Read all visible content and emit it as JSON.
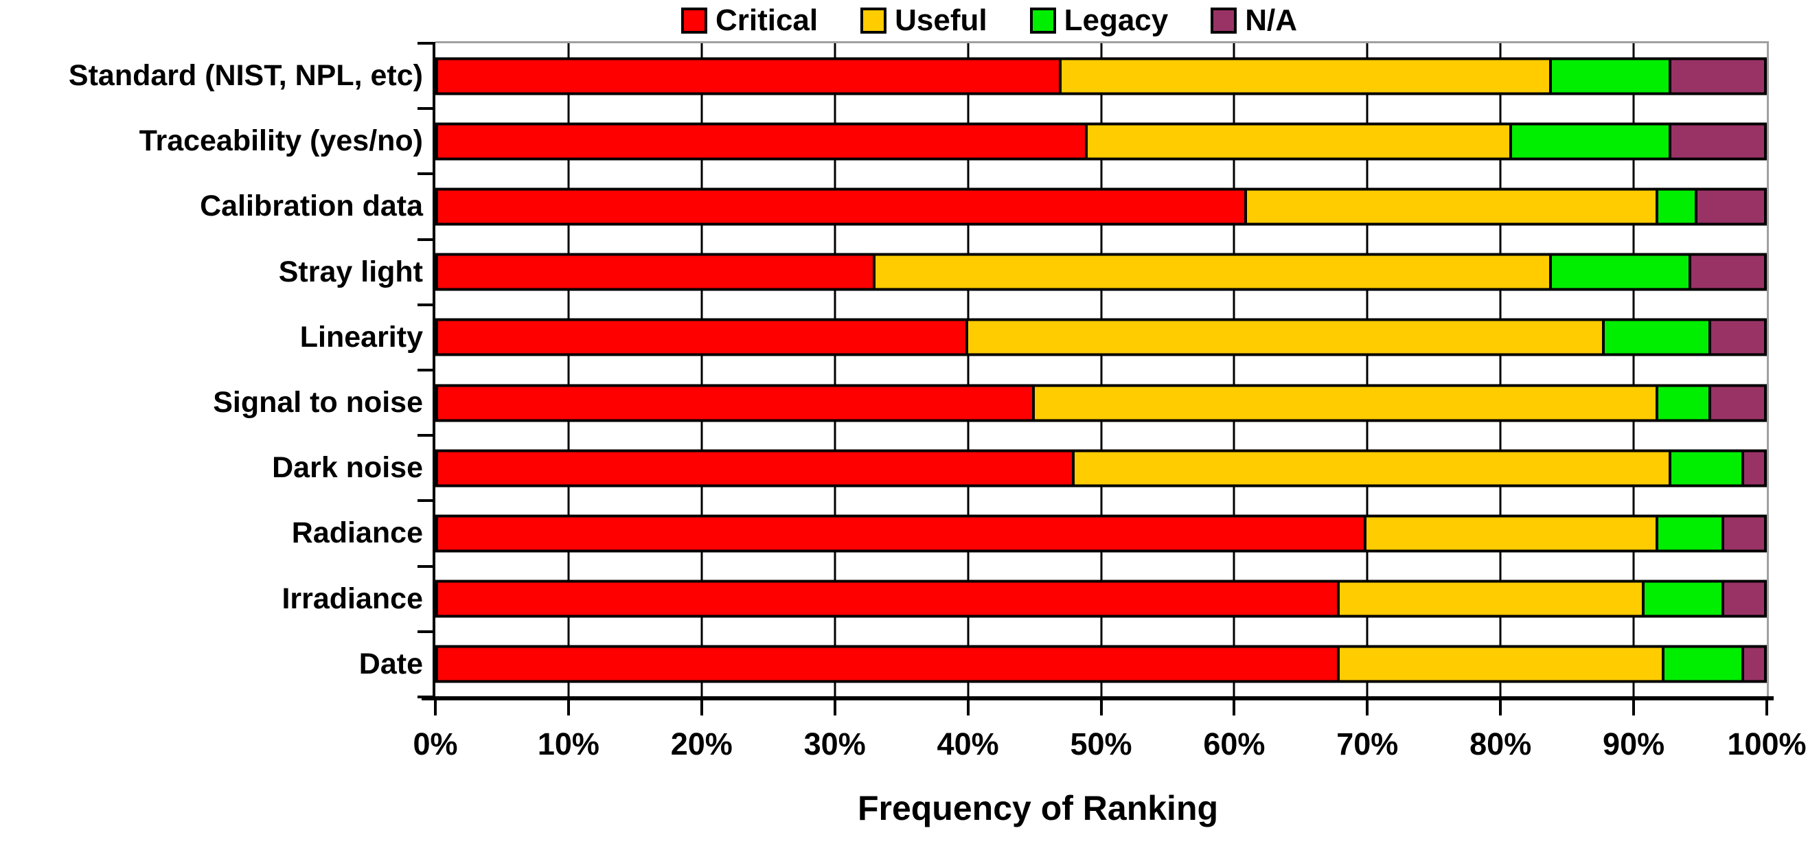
{
  "chart_data": {
    "type": "bar",
    "orientation": "horizontal",
    "stacked": true,
    "title": "",
    "xlabel": "Frequency of Ranking",
    "ylabel": "",
    "categories": [
      "Standard (NIST, NPL, etc)",
      "Traceability (yes/no)",
      "Calibration data",
      "Stray light",
      "Linearity",
      "Signal to noise",
      "Dark noise",
      "Radiance",
      "Irradiance",
      "Date"
    ],
    "series": [
      {
        "name": "Critical",
        "color": "#FF0000",
        "values": [
          47,
          49,
          61,
          33,
          40,
          45,
          48,
          70,
          68,
          68
        ]
      },
      {
        "name": "Useful",
        "color": "#FFCC00",
        "values": [
          37,
          32,
          31,
          51,
          48,
          47,
          45,
          22,
          23,
          24.5
        ]
      },
      {
        "name": "Legacy",
        "color": "#00EE00",
        "values": [
          9,
          12,
          3,
          10.5,
          8,
          4,
          5.5,
          5,
          6,
          6
        ]
      },
      {
        "name": "N/A",
        "color": "#993366",
        "values": [
          7,
          7,
          5,
          5.5,
          4,
          4,
          1.5,
          3,
          3,
          1.5
        ]
      }
    ],
    "x_ticks": [
      "0%",
      "10%",
      "20%",
      "30%",
      "40%",
      "50%",
      "60%",
      "70%",
      "80%",
      "90%",
      "100%"
    ],
    "xlim": [
      0,
      100
    ],
    "grid": true,
    "legend_position": "top",
    "bar_border_color": "#000000",
    "background_color": "#FFFFFF"
  }
}
